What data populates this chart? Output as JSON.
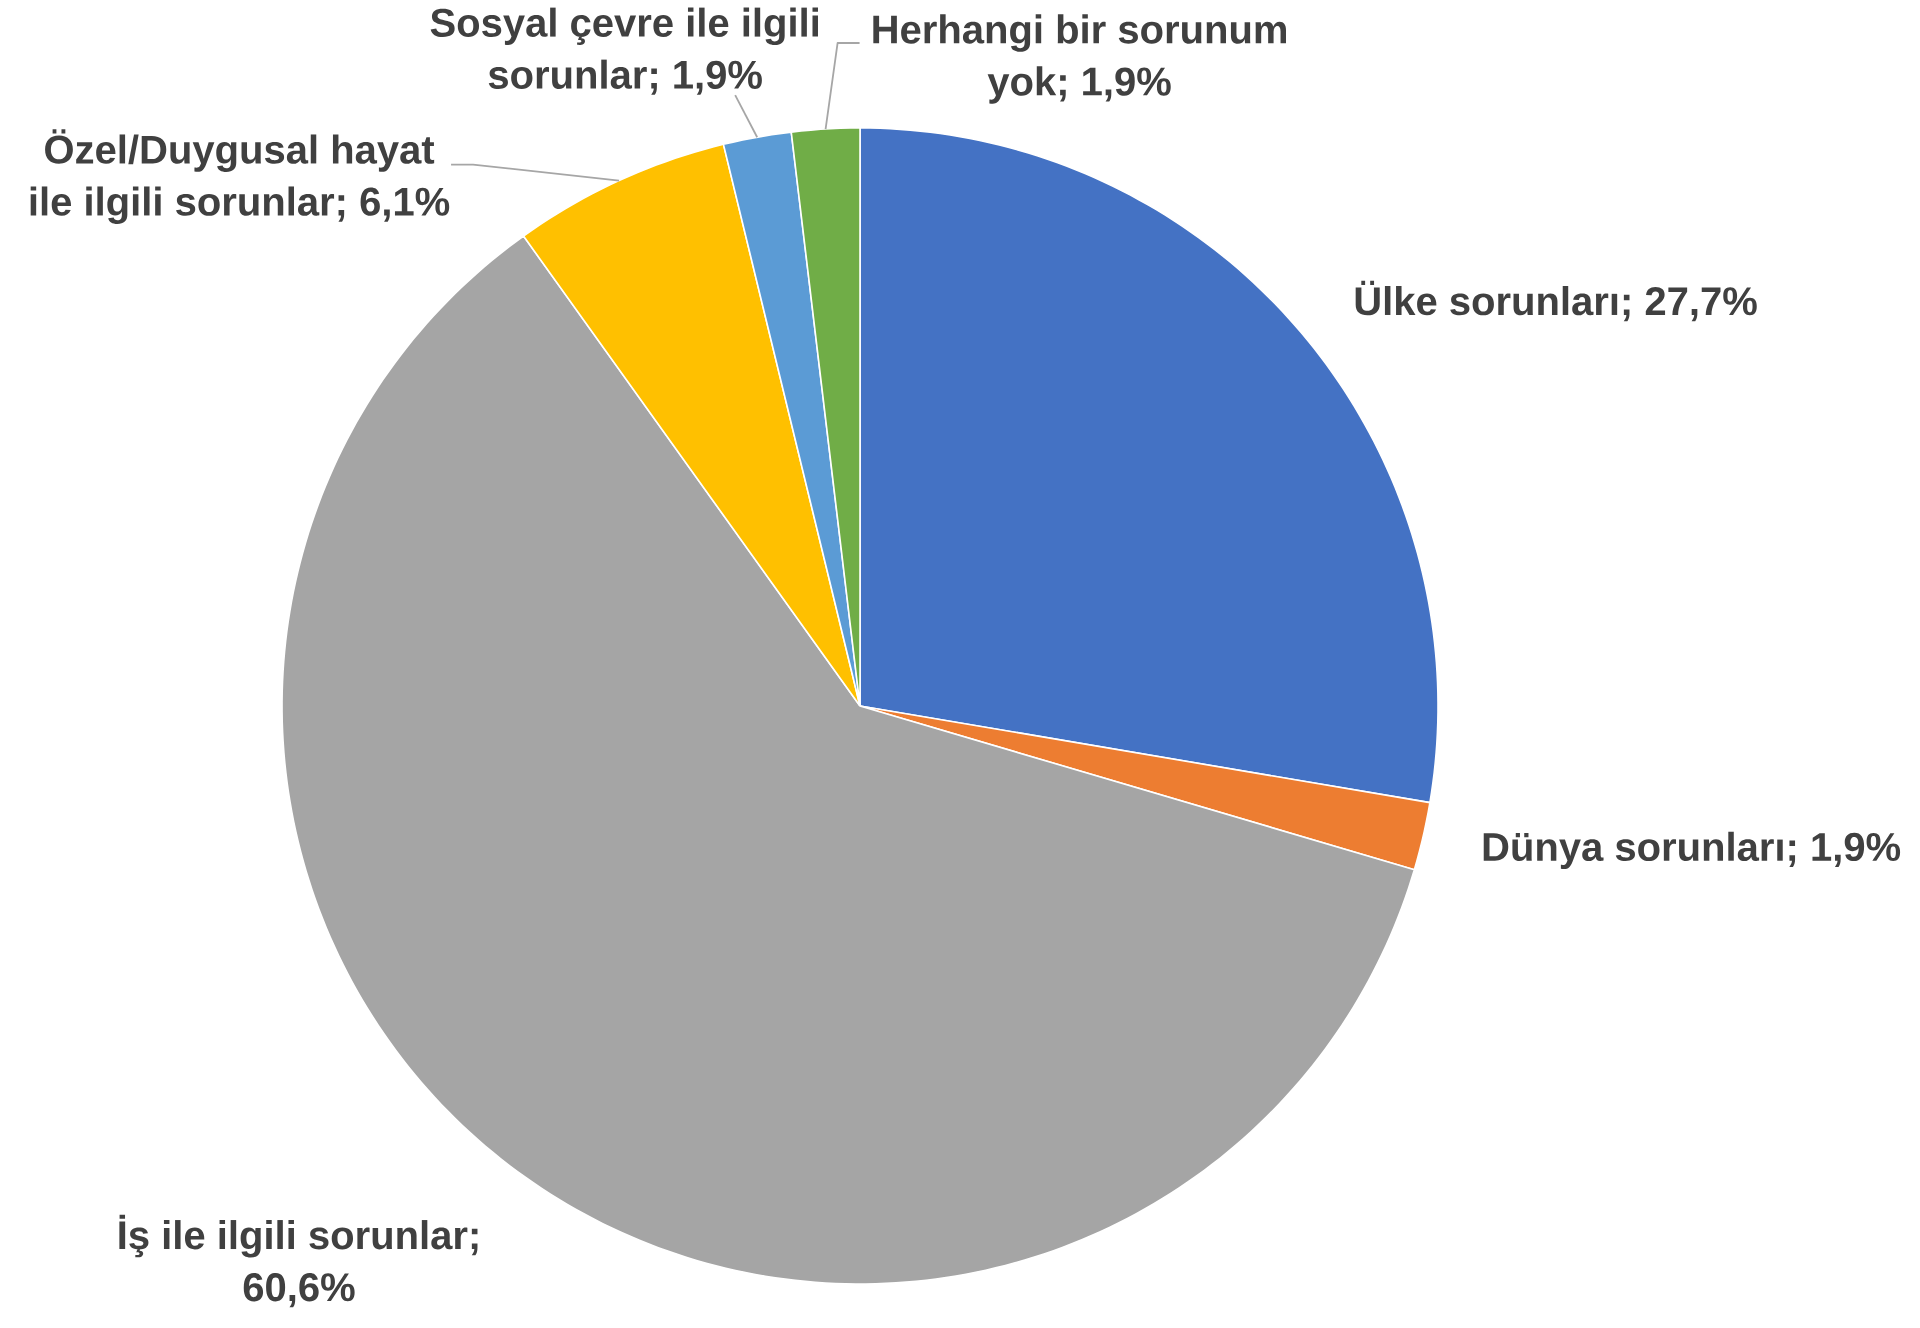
{
  "chart_data": {
    "type": "pie",
    "categories": [
      "Ülke sorunları; 27,7%",
      "Dünya sorunları; 1,9%",
      "İş ile ilgili sorunlar; 60,6%",
      "Özel/Duygusal hayat ile ilgili sorunlar; 6,1%",
      "Sosyal çevre ile ilgili sorunlar; 1,9%",
      "Herhangi bir sorunum yok; 1,9%"
    ],
    "values": [
      27.7,
      1.9,
      60.6,
      6.1,
      1.9,
      1.9
    ],
    "colors": [
      "#4472c4",
      "#ed7d31",
      "#a5a5a5",
      "#ffc000",
      "#5b9bd5",
      "#70ad47"
    ]
  }
}
